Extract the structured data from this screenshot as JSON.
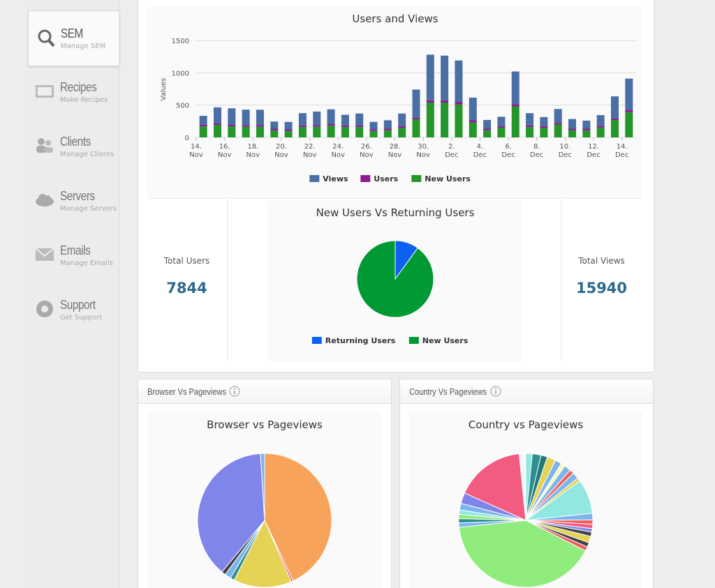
{
  "sidebar": [
    {
      "title": "SEM",
      "subtitle": "Manage SEM"
    },
    {
      "title": "Recipes",
      "subtitle": "Make Recipes"
    },
    {
      "title": "Clients",
      "subtitle": "Manage Clients"
    },
    {
      "title": "Servers",
      "subtitle": "Manage Servers"
    },
    {
      "title": "Emails",
      "subtitle": "Manage Emails"
    },
    {
      "title": "Support",
      "subtitle": "Get Support"
    }
  ],
  "stats": [
    {
      "label": "Total Users",
      "value": 7844
    },
    {
      "label": "Total Views",
      "value": 15940
    }
  ],
  "panels": [
    "Browser Vs Pageviews",
    "Country Vs Pageviews"
  ],
  "chart_data": [
    {
      "type": "bar",
      "stacked": true,
      "title": "Users and Views",
      "y_label": "Values",
      "categories": [
        "14. Nov",
        null,
        "16. Nov",
        null,
        "18. Nov",
        null,
        "20. Nov",
        null,
        "22. Nov",
        null,
        "24. Nov",
        null,
        "26. Nov",
        null,
        "28. Nov",
        null,
        "30. Nov",
        null,
        "2. Dec",
        null,
        "4. Dec",
        null,
        "6. Dec",
        null,
        "8. Dec",
        null,
        "10. Dec",
        null,
        "12. Dec",
        null,
        "14. Dec"
      ],
      "series": [
        {
          "name": "Views",
          "color": "#4a6fa5",
          "values": [
            139,
            250,
            255,
            240,
            238,
            110,
            115,
            190,
            210,
            230,
            165,
            185,
            115,
            130,
            195,
            435,
            705,
            690,
            645,
            350,
            135,
            145,
            505,
            190,
            140,
            215,
            150,
            125,
            165,
            340,
            485
          ]
        },
        {
          "name": "Users",
          "color": "#8e1b8e",
          "values": [
            25,
            25,
            25,
            25,
            25,
            25,
            25,
            25,
            25,
            25,
            25,
            25,
            25,
            25,
            25,
            25,
            35,
            35,
            35,
            35,
            25,
            25,
            35,
            25,
            25,
            25,
            25,
            25,
            25,
            25,
            35
          ]
        },
        {
          "name": "New Users",
          "color": "#25962a",
          "values": [
            170,
            190,
            170,
            165,
            165,
            110,
            100,
            160,
            165,
            180,
            160,
            160,
            100,
            110,
            150,
            280,
            540,
            540,
            510,
            230,
            110,
            150,
            480,
            160,
            150,
            200,
            110,
            110,
            155,
            270,
            390
          ]
        }
      ],
      "ylim": [
        0,
        1500
      ],
      "yticks": [
        0,
        500,
        1000,
        1500
      ],
      "grid": true
    },
    {
      "type": "pie",
      "title": "New Users Vs Returning Users",
      "categories": [
        "Returning Users",
        "New Users"
      ],
      "values": [
        10,
        90
      ],
      "colors": [
        "#0b62f0",
        "#009933"
      ]
    },
    {
      "type": "pie",
      "title": "Browser vs Pageviews",
      "values": [
        43,
        0.5,
        14,
        1,
        1.5,
        1,
        38,
        1
      ],
      "colors": [
        "#f7a35c",
        "#f15c80",
        "#e4d354",
        "#2b908f",
        "#7cb5ec",
        "#434348",
        "#8085e9",
        "#7cb5ec"
      ]
    },
    {
      "type": "pie",
      "title": "Country vs Pageviews",
      "values": [
        1.5,
        2,
        1.5,
        2,
        1.5,
        1,
        1.5,
        1,
        1.5,
        0.8,
        8,
        1.5,
        1,
        1,
        0.8,
        1,
        1.5,
        1,
        1,
        39,
        1,
        1,
        1,
        1,
        1.5,
        2.5,
        16,
        1.5
      ],
      "colors": [
        "#91e8e1",
        "#2b908f",
        "#1f7a78",
        "#e4d354",
        "#7cb5ec",
        "#f7f7c0",
        "#7cb5ec",
        "#f45b5b",
        "#7cb5ec",
        "#e4d354",
        "#91e8e1",
        "#7cb5ec",
        "#f45b5b",
        "#f15c80",
        "#8085e9",
        "#434348",
        "#e4d354",
        "#434348",
        "#f45b5b",
        "#90ed7d",
        "#7cb5ec",
        "#2b908f",
        "#90ed7d",
        "#91e8e1",
        "#7cb5ec",
        "#8085e9",
        "#f15c80",
        "#f7f7f7"
      ]
    }
  ]
}
